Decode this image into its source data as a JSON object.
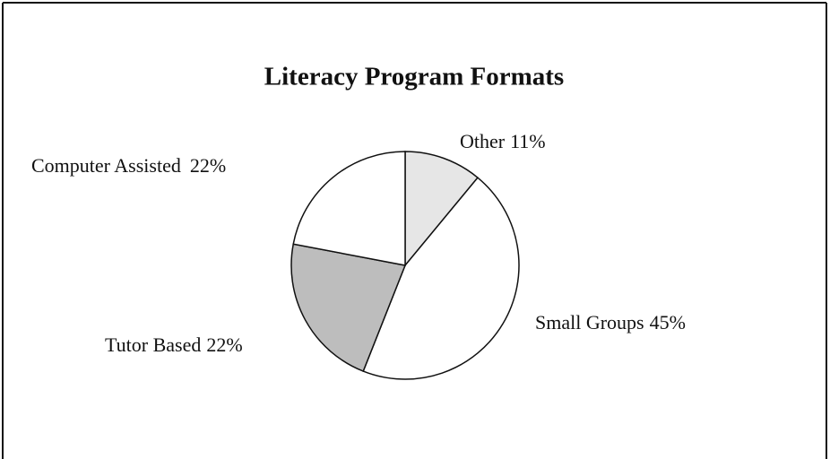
{
  "chart_data": {
    "type": "pie",
    "title": "Literacy Program Formats",
    "categories": [
      "Other",
      "Small Groups",
      "Tutor Based",
      "Computer Assisted"
    ],
    "values": [
      11,
      45,
      22,
      22
    ],
    "value_labels": [
      "11%",
      "45%",
      "22%",
      "22%"
    ],
    "colors": [
      "#e6e6e6",
      "#ffffff",
      "#bdbdbd",
      "#ffffff"
    ]
  }
}
